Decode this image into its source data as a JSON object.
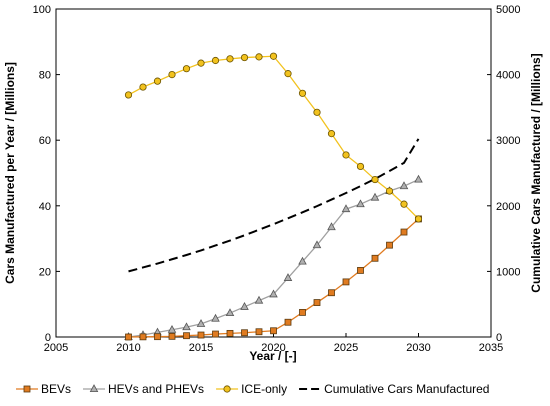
{
  "chart_data": {
    "type": "line",
    "xlabel": "Year / [-]",
    "ylabel_left": "Cars Manufactured per Year / [Millions]",
    "ylabel_right": "Cumulative Cars Manufactured / [Millions]",
    "xlim": [
      2005,
      2035
    ],
    "xticks": [
      2005,
      2010,
      2015,
      2020,
      2025,
      2030,
      2035
    ],
    "ylim_left": [
      0,
      100
    ],
    "yticks_left": [
      0,
      20,
      40,
      60,
      80,
      100
    ],
    "ylim_right": [
      0,
      5000
    ],
    "yticks_right": [
      0,
      1000,
      2000,
      3000,
      4000,
      5000
    ],
    "grid": false,
    "legend_position": "bottom",
    "x": [
      2010,
      2011,
      2012,
      2013,
      2014,
      2015,
      2016,
      2017,
      2018,
      2019,
      2020,
      2021,
      2022,
      2023,
      2024,
      2025,
      2026,
      2027,
      2028,
      2029,
      2030
    ],
    "series": [
      {
        "name": "BEVs",
        "axis": "left",
        "color": "#E07B20",
        "marker": "square",
        "line_style": "solid",
        "values": [
          0.0,
          0.05,
          0.1,
          0.2,
          0.4,
          0.6,
          0.9,
          1.1,
          1.3,
          1.6,
          1.9,
          4.5,
          7.5,
          10.5,
          13.5,
          16.8,
          20.3,
          24.0,
          28.0,
          32.0,
          36.0
        ]
      },
      {
        "name": "HEVs and PHEVs",
        "axis": "left",
        "color": "#A0A0A0",
        "marker": "triangle",
        "line_style": "solid",
        "values": [
          0.0,
          0.6,
          1.4,
          2.2,
          3.0,
          4.0,
          5.6,
          7.3,
          9.2,
          11.1,
          13.0,
          18.0,
          23.0,
          28.0,
          33.5,
          39.0,
          40.5,
          42.5,
          44.5,
          46.0,
          48.0
        ]
      },
      {
        "name": "ICE-only",
        "axis": "left",
        "color": "#F2C21E",
        "marker": "circle",
        "line_style": "solid",
        "values": [
          73.8,
          76.2,
          78.0,
          80.0,
          81.8,
          83.5,
          84.3,
          84.8,
          85.2,
          85.4,
          85.6,
          80.3,
          74.3,
          68.5,
          62.0,
          55.5,
          52.0,
          48.0,
          44.5,
          40.5,
          36.0
        ]
      },
      {
        "name": "Cumulative Cars Manufactured",
        "axis": "right",
        "color": "#000000",
        "marker": "none",
        "line_style": "dashed",
        "values": [
          1000,
          1060,
          1120,
          1185,
          1250,
          1320,
          1395,
          1470,
          1550,
          1635,
          1720,
          1810,
          1900,
          1995,
          2095,
          2195,
          2300,
          2410,
          2530,
          2655,
          3020
        ]
      }
    ]
  }
}
